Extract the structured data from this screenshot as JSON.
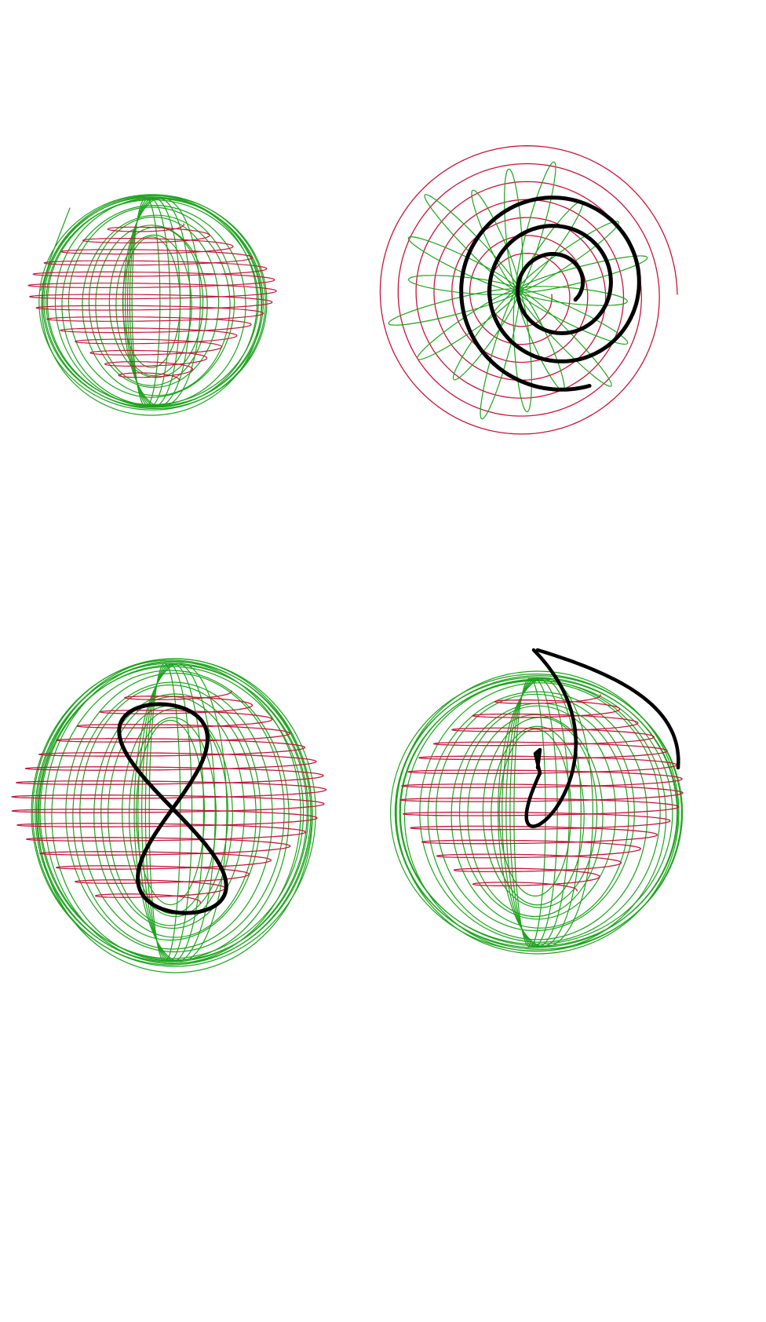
{
  "colors": {
    "green": "#1ea31e",
    "red": "#c4163c",
    "black": "#000000",
    "background": "#ffffff"
  },
  "panels": [
    {
      "name": "panel-1",
      "description_key": "green-ellipses-red-helix",
      "has_black_curve": false
    },
    {
      "name": "panel-2",
      "description_key": "red-spiral-green-petals-black-spiral",
      "has_black_curve": true
    },
    {
      "name": "panel-3",
      "description_key": "green-ellipses-red-helix-black-figure-eight",
      "has_black_curve": true
    },
    {
      "name": "panel-4",
      "description_key": "green-ellipses-red-helix-black-hook",
      "has_black_curve": true
    }
  ]
}
